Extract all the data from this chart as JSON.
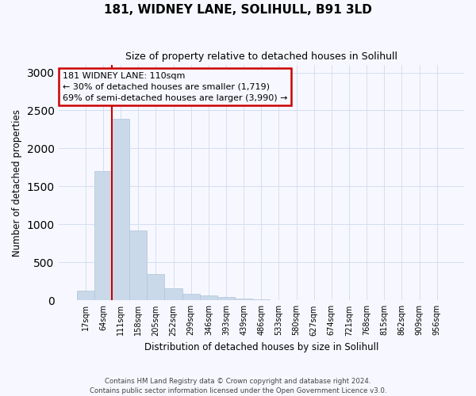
{
  "title": "181, WIDNEY LANE, SOLIHULL, B91 3LD",
  "subtitle": "Size of property relative to detached houses in Solihull",
  "xlabel": "Distribution of detached houses by size in Solihull",
  "ylabel": "Number of detached properties",
  "bar_color": "#c9d9ea",
  "bar_edge_color": "#b0c4d8",
  "grid_color": "#d4dff0",
  "background_color": "#f7f8ff",
  "annotation_box_color": "#cc0000",
  "vline_color": "#cc0000",
  "bin_labels": [
    "17sqm",
    "64sqm",
    "111sqm",
    "158sqm",
    "205sqm",
    "252sqm",
    "299sqm",
    "346sqm",
    "393sqm",
    "439sqm",
    "486sqm",
    "533sqm",
    "580sqm",
    "627sqm",
    "674sqm",
    "721sqm",
    "768sqm",
    "815sqm",
    "862sqm",
    "909sqm",
    "956sqm"
  ],
  "bar_heights": [
    130,
    1700,
    2390,
    920,
    350,
    160,
    90,
    65,
    45,
    20,
    10,
    8,
    5,
    3,
    2,
    1,
    1,
    0,
    0,
    0,
    0
  ],
  "ylim": [
    0,
    3100
  ],
  "yticks": [
    0,
    500,
    1000,
    1500,
    2000,
    2500,
    3000
  ],
  "annotation_text": "181 WIDNEY LANE: 110sqm\n← 30% of detached houses are smaller (1,719)\n69% of semi-detached houses are larger (3,990) →",
  "footer_line1": "Contains HM Land Registry data © Crown copyright and database right 2024.",
  "footer_line2": "Contains public sector information licensed under the Open Government Licence v3.0.",
  "vline_x_bin": 1.5
}
